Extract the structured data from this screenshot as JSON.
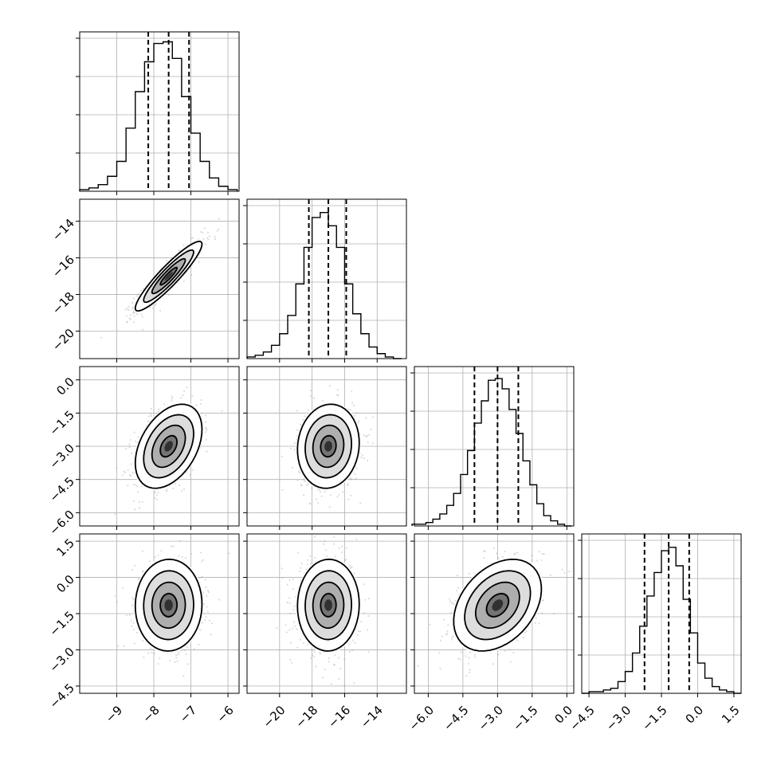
{
  "chart_data": {
    "type": "corner",
    "grid": true,
    "n_parameters": 4,
    "marginals": [
      {
        "bins_x": [
          -10.0,
          -9.75,
          -9.5,
          -9.25,
          -9.0,
          -8.75,
          -8.5,
          -8.25,
          -8.0,
          -7.75,
          -7.5,
          -7.25,
          -7.0,
          -6.75,
          -6.5,
          -6.25,
          -6.0,
          -5.75
        ],
        "counts": [
          1,
          2,
          4,
          9,
          18,
          38,
          60,
          78,
          89,
          90,
          80,
          57,
          35,
          18,
          8,
          3,
          1
        ],
        "quantiles": [
          -8.15,
          -7.6,
          -7.05
        ],
        "ylim": [
          0,
          96
        ],
        "xlim": [
          -10.0,
          -5.7
        ],
        "xticks": [
          -9,
          -8,
          -7,
          -6
        ],
        "tick_labels": [
          "−9",
          "−8",
          "−7",
          "−6"
        ]
      },
      {
        "bins_x": [
          -22.0,
          -21.5,
          -21.0,
          -20.5,
          -20.0,
          -19.5,
          -19.0,
          -18.5,
          -18.0,
          -17.5,
          -17.0,
          -16.5,
          -16.0,
          -15.5,
          -15.0,
          -14.5,
          -14.0,
          -13.5,
          -13.0,
          -12.5
        ],
        "counts": [
          1,
          2,
          4,
          8,
          15,
          26,
          45,
          67,
          85,
          88,
          80,
          67,
          45,
          27,
          15,
          7,
          3,
          1,
          0
        ],
        "quantiles": [
          -18.2,
          -17.0,
          -15.9
        ],
        "ylim": [
          0,
          96
        ],
        "xlim": [
          -22.0,
          -12.2
        ],
        "xticks": [
          -20,
          -18,
          -16,
          -14
        ],
        "tick_labels": [
          "−20",
          "−18",
          "−16",
          "−14"
        ]
      },
      {
        "bins_x": [
          -6.7,
          -6.4,
          -6.1,
          -5.8,
          -5.5,
          -5.2,
          -4.9,
          -4.6,
          -4.3,
          -4.0,
          -3.7,
          -3.4,
          -3.1,
          -2.8,
          -2.5,
          -2.2,
          -1.9,
          -1.6,
          -1.3,
          -1.0,
          -0.7,
          -0.4,
          -0.1,
          0.2
        ],
        "counts": [
          1,
          1,
          2,
          4,
          7,
          12,
          19,
          30,
          44,
          60,
          73,
          85,
          86,
          80,
          68,
          54,
          38,
          24,
          13,
          6,
          3,
          1,
          0
        ],
        "quantiles": [
          -4.0,
          -3.0,
          -2.1
        ],
        "ylim": [
          0,
          93
        ],
        "xlim": [
          -6.6,
          0.3
        ],
        "xticks": [
          -6.0,
          -4.5,
          -3.0,
          -1.5,
          0.0
        ],
        "tick_labels": [
          "−6.0",
          "−4.5",
          "−3.0",
          "−1.5",
          "0.0"
        ]
      },
      {
        "bins_x": [
          -4.8,
          -4.5,
          -4.2,
          -3.9,
          -3.6,
          -3.3,
          -3.0,
          -2.7,
          -2.4,
          -2.1,
          -1.8,
          -1.5,
          -1.2,
          -0.9,
          -0.6,
          -0.3,
          0.0,
          0.3,
          0.6,
          0.9,
          1.2,
          1.5,
          1.8
        ],
        "counts": [
          0,
          1,
          1,
          2,
          3,
          7,
          13,
          24,
          40,
          58,
          72,
          85,
          87,
          76,
          56,
          36,
          18,
          9,
          4,
          2,
          1,
          0
        ],
        "quantiles": [
          -2.2,
          -1.2,
          -0.35
        ],
        "ylim": [
          0,
          95
        ],
        "xlim": [
          -4.8,
          1.8
        ],
        "xticks": [
          -4.5,
          -3.0,
          -1.5,
          0.0,
          1.5
        ],
        "tick_labels": [
          "−4.5",
          "−3.0",
          "−1.5",
          "0.0",
          "1.5"
        ]
      }
    ],
    "row_axes": [
      null,
      {
        "ylim": [
          -21.5,
          -12.8
        ],
        "yticks": [
          -20,
          -18,
          -16,
          -14
        ],
        "tick_labels": [
          "−20",
          "−18",
          "−16",
          "−14"
        ]
      },
      {
        "ylim": [
          -6.6,
          0.6
        ],
        "yticks": [
          -6.0,
          -4.5,
          -3.0,
          -1.5,
          0.0
        ],
        "tick_labels": [
          "−6.0",
          "−4.5",
          "−3.0",
          "−1.5",
          "0.0"
        ]
      },
      {
        "ylim": [
          -4.8,
          1.8
        ],
        "yticks": [
          -4.5,
          -3.0,
          -1.5,
          0.0,
          1.5
        ],
        "tick_labels": [
          "−4.5",
          "−3.0",
          "−1.5",
          "0.0",
          "1.5"
        ]
      }
    ],
    "joint": [
      {
        "row": 1,
        "col": 0,
        "mean": [
          -7.6,
          -17.0
        ],
        "sd": [
          0.45,
          0.95
        ],
        "rho": 0.92
      },
      {
        "row": 2,
        "col": 0,
        "mean": [
          -7.6,
          -3.0
        ],
        "sd": [
          0.45,
          0.95
        ],
        "rho": 0.4
      },
      {
        "row": 2,
        "col": 1,
        "mean": [
          -17.0,
          -3.0
        ],
        "sd": [
          0.95,
          0.95
        ],
        "rho": 0.08
      },
      {
        "row": 3,
        "col": 0,
        "mean": [
          -7.6,
          -1.15
        ],
        "sd": [
          0.45,
          0.95
        ],
        "rho": 0.02
      },
      {
        "row": 3,
        "col": 1,
        "mean": [
          -17.0,
          -1.15
        ],
        "sd": [
          0.95,
          0.95
        ],
        "rho": 0.02
      },
      {
        "row": 3,
        "col": 2,
        "mean": [
          -3.0,
          -1.15
        ],
        "sd": [
          0.95,
          0.95
        ],
        "rho": 0.35
      }
    ],
    "contour_levels_sigma": [
      0.5,
      1.0,
      1.5,
      2.0
    ]
  }
}
